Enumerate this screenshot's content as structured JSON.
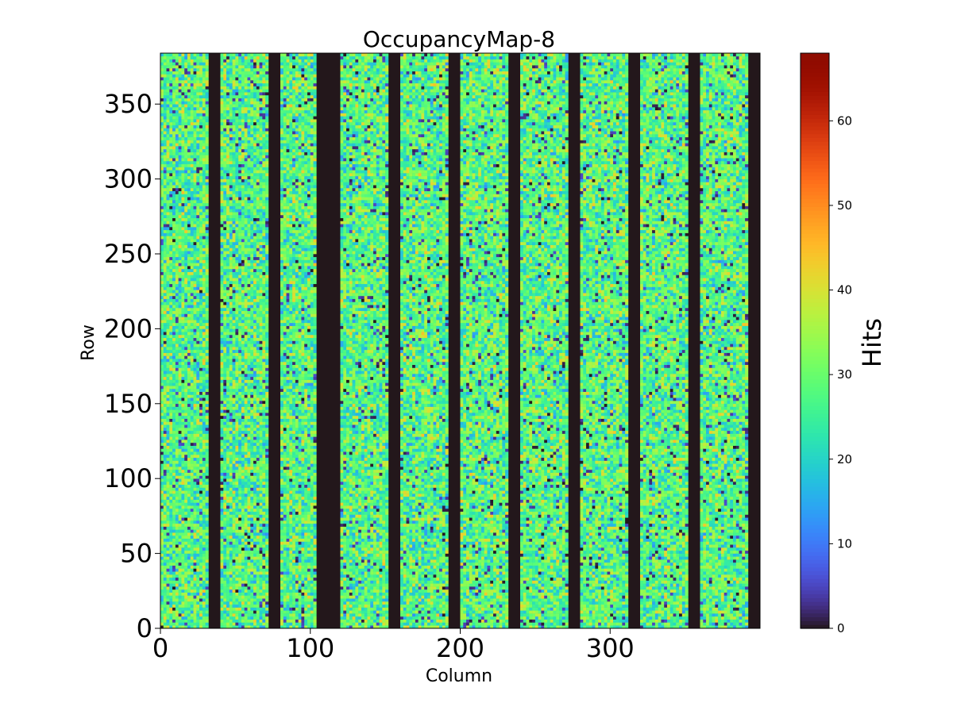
{
  "chart_data": {
    "type": "heatmap",
    "title": "OccupancyMap-8",
    "xlabel": "Column",
    "ylabel": "Row",
    "xlim": [
      0,
      400
    ],
    "ylim": [
      0,
      384
    ],
    "x_ticks": [
      0,
      100,
      200,
      300
    ],
    "y_ticks": [
      0,
      50,
      100,
      150,
      200,
      250,
      300,
      350
    ],
    "x_tick_labels": [
      "0",
      "100",
      "200",
      "300"
    ],
    "y_tick_labels": [
      "0",
      "50",
      "100",
      "150",
      "200",
      "250",
      "300",
      "350"
    ],
    "colorbar": {
      "label": "Hits",
      "vmin": 0,
      "vmax": 68,
      "colormap": "turbo",
      "ticks": [
        0,
        10,
        20,
        30,
        40,
        50,
        60
      ],
      "tick_labels": [
        "0",
        "10",
        "20",
        "30",
        "40",
        "50",
        "60"
      ]
    },
    "empty_column_ranges": [
      [
        32,
        40
      ],
      [
        72,
        80
      ],
      [
        104,
        120
      ],
      [
        152,
        160
      ],
      [
        192,
        200
      ],
      [
        232,
        240
      ],
      [
        272,
        280
      ],
      [
        312,
        320
      ],
      [
        352,
        360
      ],
      [
        392,
        400
      ]
    ],
    "active_hits_typical_range": [
      0,
      45
    ]
  }
}
